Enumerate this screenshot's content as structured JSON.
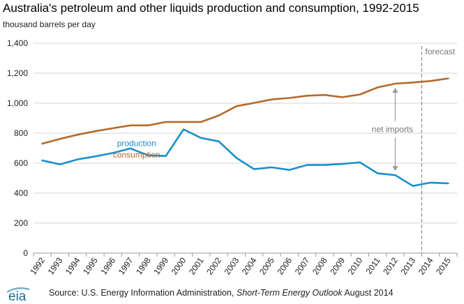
{
  "chart_data": {
    "type": "line",
    "title": "Australia's petroleum and other liquids production and consumption, 1992-2015",
    "ylabel": "thousand barrels per day",
    "xlabel": "",
    "x": [
      "1992",
      "1993",
      "1994",
      "1995",
      "1996",
      "1997",
      "1998",
      "1999",
      "2000",
      "2001",
      "2002",
      "2003",
      "2004",
      "2005",
      "2006",
      "2007",
      "2008",
      "2009",
      "2010",
      "2011",
      "2012",
      "2013",
      "2014",
      "2015"
    ],
    "ylim": [
      0,
      1400
    ],
    "yticks": [
      0,
      200,
      400,
      600,
      800,
      1000,
      1200,
      1400
    ],
    "ytick_labels": [
      "0",
      "200",
      "400",
      "600",
      "800",
      "1,000",
      "1,200",
      "1,400"
    ],
    "grid": true,
    "series": [
      {
        "name": "consumption",
        "color": "#b5692b",
        "values": [
          730,
          762,
          790,
          813,
          833,
          852,
          852,
          875,
          875,
          875,
          918,
          980,
          1002,
          1025,
          1035,
          1050,
          1055,
          1040,
          1058,
          1105,
          1130,
          1138,
          1148,
          1165
        ]
      },
      {
        "name": "production",
        "color": "#1a8fc9",
        "values": [
          618,
          592,
          625,
          645,
          668,
          698,
          652,
          648,
          825,
          768,
          745,
          635,
          560,
          572,
          555,
          588,
          588,
          595,
          605,
          532,
          520,
          448,
          470,
          465
        ]
      }
    ],
    "annotations": {
      "forecast_label": "forecast",
      "net_imports_label": "net imports"
    }
  },
  "footer": {
    "logo_text": "eia",
    "source_prefix": "Source: U.S. Energy Information  Administration, ",
    "source_title": "Short-Term  Energy  Outlook",
    "source_suffix": " August 2014"
  }
}
